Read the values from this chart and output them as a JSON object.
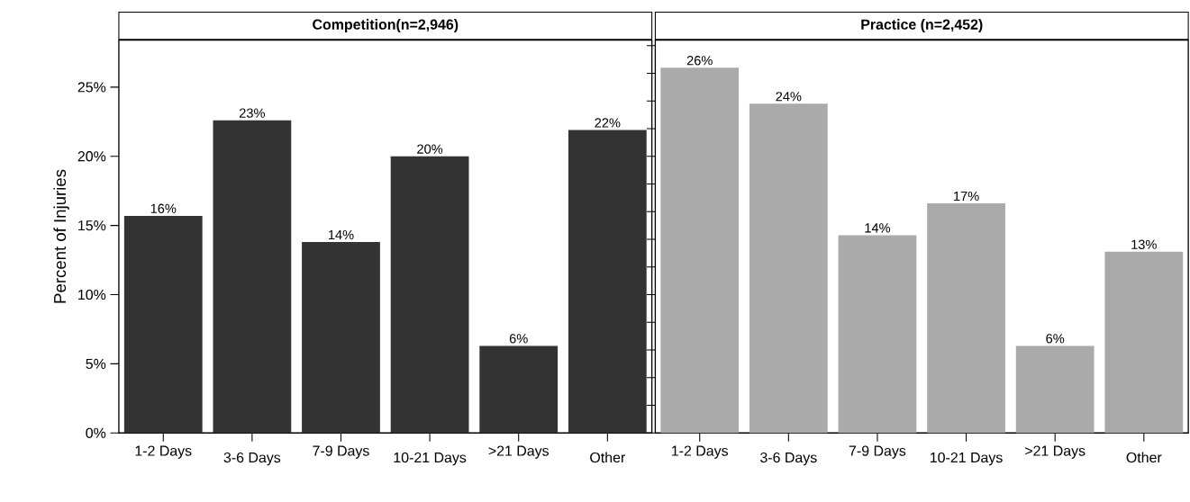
{
  "chart_data": [
    {
      "type": "bar",
      "title": "Competition(n=2,946)",
      "ylabel": "Percent of Injuries",
      "categories": [
        "1-2 Days",
        "3-6 Days",
        "7-9 Days",
        "10-21 Days",
        ">21 Days",
        "Other"
      ],
      "values": [
        15.7,
        22.6,
        13.8,
        20.0,
        6.3,
        21.9
      ],
      "value_labels": [
        "16%",
        "23%",
        "14%",
        "20%",
        "6%",
        "22%"
      ],
      "color": "#333333",
      "ylim": [
        0,
        28.4
      ],
      "yticks": [
        {
          "value": 0,
          "label": "0%"
        },
        {
          "value": 5,
          "label": "5%"
        },
        {
          "value": 10,
          "label": "10%"
        },
        {
          "value": 15,
          "label": "15%"
        },
        {
          "value": 20,
          "label": "20%"
        },
        {
          "value": 25,
          "label": "25%"
        }
      ],
      "grid": false
    },
    {
      "type": "bar",
      "title": "Practice (n=2,452)",
      "categories": [
        "1-2 Days",
        "3-6 Days",
        "7-9 Days",
        "10-21 Days",
        ">21 Days",
        "Other"
      ],
      "values": [
        26.4,
        23.8,
        14.3,
        16.6,
        6.3,
        13.1
      ],
      "value_labels": [
        "26%",
        "24%",
        "14%",
        "17%",
        "6%",
        "13%"
      ],
      "color": "#aaaaaa",
      "ylim": [
        0,
        28.4
      ],
      "tick_labels": "x",
      "grid": false
    }
  ]
}
